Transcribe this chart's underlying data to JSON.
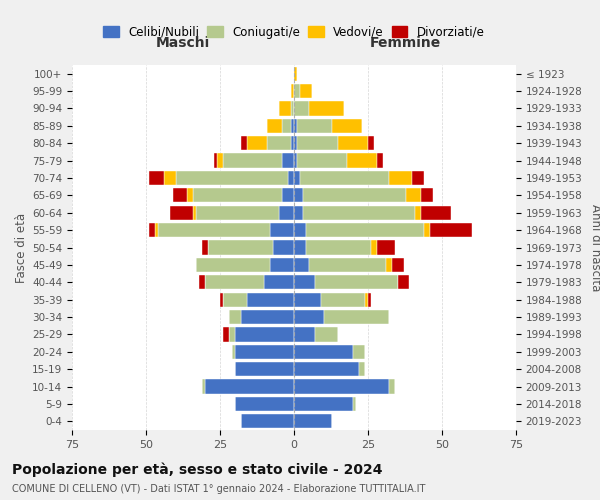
{
  "age_groups": [
    "0-4",
    "5-9",
    "10-14",
    "15-19",
    "20-24",
    "25-29",
    "30-34",
    "35-39",
    "40-44",
    "45-49",
    "50-54",
    "55-59",
    "60-64",
    "65-69",
    "70-74",
    "75-79",
    "80-84",
    "85-89",
    "90-94",
    "95-99",
    "100+"
  ],
  "birth_years": [
    "2019-2023",
    "2014-2018",
    "2009-2013",
    "2004-2008",
    "1999-2003",
    "1994-1998",
    "1989-1993",
    "1984-1988",
    "1979-1983",
    "1974-1978",
    "1969-1973",
    "1964-1968",
    "1959-1963",
    "1954-1958",
    "1949-1953",
    "1944-1948",
    "1939-1943",
    "1934-1938",
    "1929-1933",
    "1924-1928",
    "≤ 1923"
  ],
  "colors": {
    "celibi": "#4472c4",
    "coniugati": "#b5c98e",
    "vedovi": "#ffc000",
    "divorziati": "#c00000"
  },
  "maschi": {
    "celibi": [
      18,
      20,
      30,
      20,
      20,
      20,
      18,
      16,
      10,
      8,
      7,
      8,
      5,
      4,
      2,
      4,
      1,
      1,
      0,
      0,
      0
    ],
    "coniugati": [
      0,
      0,
      1,
      0,
      1,
      2,
      4,
      8,
      20,
      25,
      22,
      38,
      28,
      30,
      38,
      20,
      8,
      3,
      1,
      0,
      0
    ],
    "vedovi": [
      0,
      0,
      0,
      0,
      0,
      0,
      0,
      0,
      0,
      0,
      0,
      1,
      1,
      2,
      4,
      2,
      7,
      5,
      4,
      1,
      0
    ],
    "divorziati": [
      0,
      0,
      0,
      0,
      0,
      2,
      0,
      1,
      2,
      0,
      2,
      2,
      8,
      5,
      5,
      1,
      2,
      0,
      0,
      0,
      0
    ]
  },
  "femmine": {
    "nubili": [
      13,
      20,
      32,
      22,
      20,
      7,
      10,
      9,
      7,
      5,
      4,
      4,
      3,
      3,
      2,
      1,
      1,
      1,
      0,
      0,
      0
    ],
    "coniugate": [
      0,
      1,
      2,
      2,
      4,
      8,
      22,
      15,
      28,
      26,
      22,
      40,
      38,
      35,
      30,
      17,
      14,
      12,
      5,
      2,
      0
    ],
    "vedove": [
      0,
      0,
      0,
      0,
      0,
      0,
      0,
      1,
      0,
      2,
      2,
      2,
      2,
      5,
      8,
      10,
      10,
      10,
      12,
      4,
      1
    ],
    "divorziate": [
      0,
      0,
      0,
      0,
      0,
      0,
      0,
      1,
      4,
      4,
      6,
      14,
      10,
      4,
      4,
      2,
      2,
      0,
      0,
      0,
      0
    ]
  },
  "title": "Popolazione per età, sesso e stato civile - 2024",
  "subtitle": "COMUNE DI CELLENO (VT) - Dati ISTAT 1° gennaio 2024 - Elaborazione TUTTITALIA.IT",
  "xlabel_left": "Maschi",
  "xlabel_right": "Femmine",
  "ylabel_left": "Fasce di età",
  "ylabel_right": "Anni di nascita",
  "xlim": 75,
  "legend_labels": [
    "Celibi/Nubili",
    "Coniugati/e",
    "Vedovi/e",
    "Divorziati/e"
  ],
  "bg_color": "#f0f0f0",
  "plot_bg_color": "#ffffff"
}
